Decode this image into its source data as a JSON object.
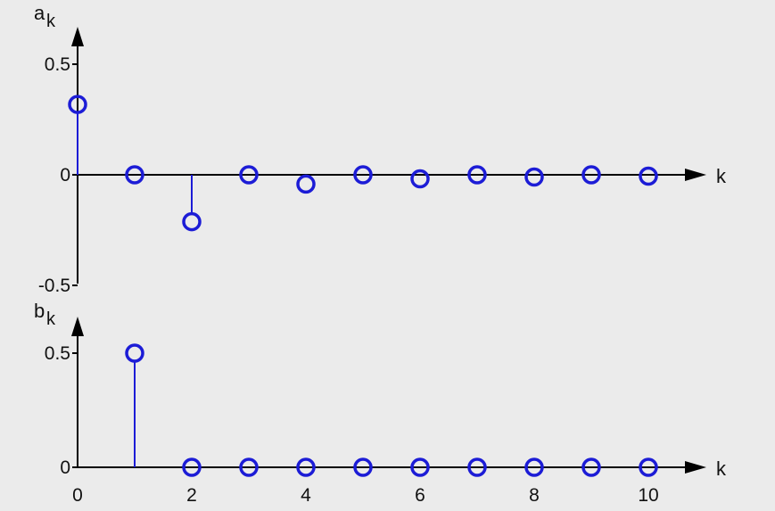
{
  "chart_data": [
    {
      "type": "stem",
      "ylabel": "a",
      "ylabel_sub": "k",
      "xlabel": "k",
      "x": [
        0,
        1,
        2,
        3,
        4,
        5,
        6,
        7,
        8,
        9,
        10
      ],
      "values": [
        0.318,
        0,
        -0.212,
        0,
        -0.042,
        0,
        -0.018,
        0,
        -0.01,
        0,
        -0.006
      ],
      "ylim": [
        -0.5,
        0.5
      ],
      "yticks": [
        "0.5",
        "0",
        "-0.5"
      ],
      "ytick_values": [
        0.5,
        0,
        -0.5
      ],
      "grid": false,
      "marker_color": "#1c1cd6"
    },
    {
      "type": "stem",
      "ylabel": "b",
      "ylabel_sub": "k",
      "xlabel": "k",
      "x": [
        1,
        2,
        3,
        4,
        5,
        6,
        7,
        8,
        9,
        10
      ],
      "values": [
        0.5,
        0,
        0,
        0,
        0,
        0,
        0,
        0,
        0,
        0
      ],
      "ylim": [
        0,
        0.5
      ],
      "yticks": [
        "0.5",
        "0"
      ],
      "ytick_values": [
        0.5,
        0
      ],
      "xticks": [
        "0",
        "2",
        "4",
        "6",
        "8",
        "10"
      ],
      "xtick_values": [
        0,
        2,
        4,
        6,
        8,
        10
      ],
      "grid": false,
      "marker_color": "#1c1cd6"
    }
  ]
}
